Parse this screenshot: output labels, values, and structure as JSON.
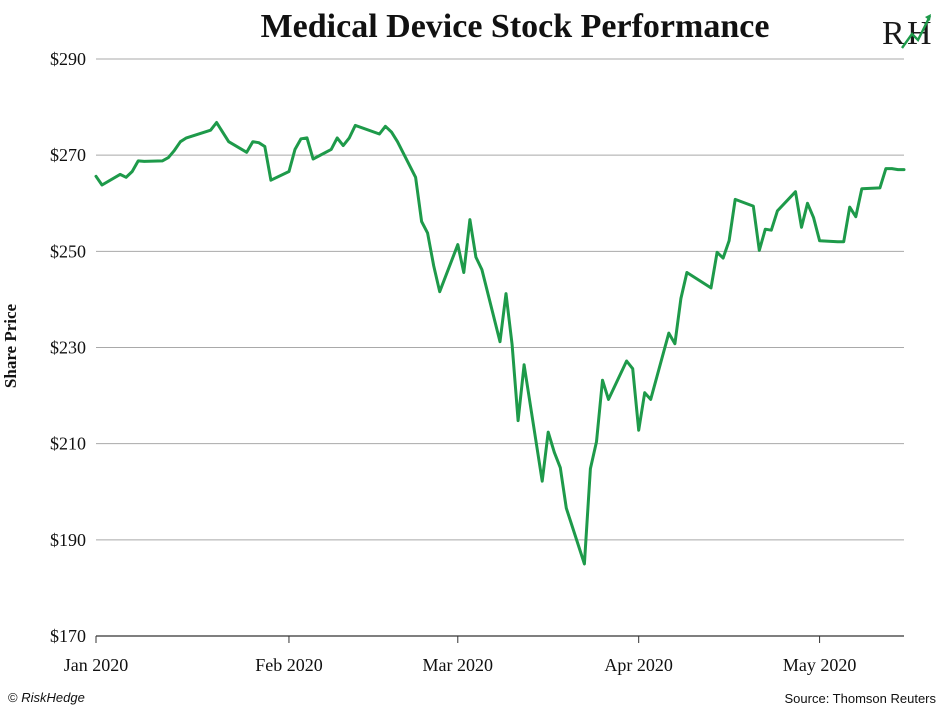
{
  "chart_data": {
    "type": "line",
    "title": "Medical Device Stock Performance",
    "ylabel": "Share Price",
    "xlabel": "",
    "ylim": [
      170,
      290
    ],
    "yticks": [
      170,
      190,
      210,
      230,
      250,
      270,
      290
    ],
    "ytick_labels": [
      "$170",
      "$190",
      "$210",
      "$230",
      "$250",
      "$270",
      "$290"
    ],
    "xlim": [
      "2020-01-02",
      "2020-05-15"
    ],
    "xticks": [
      {
        "date": "2020-01-02",
        "label": "Jan 2020"
      },
      {
        "date": "2020-02-03",
        "label": "Feb 2020"
      },
      {
        "date": "2020-03-02",
        "label": "Mar 2020"
      },
      {
        "date": "2020-04-01",
        "label": "Apr 2020"
      },
      {
        "date": "2020-05-01",
        "label": "May 2020"
      }
    ],
    "grid": "horizontal",
    "line_color": "#1e9a4a",
    "series": [
      {
        "x": [
          "2020-01-02",
          "2020-01-03",
          "2020-01-06",
          "2020-01-07",
          "2020-01-08",
          "2020-01-09",
          "2020-01-10",
          "2020-01-13",
          "2020-01-14",
          "2020-01-15",
          "2020-01-16",
          "2020-01-17",
          "2020-01-21",
          "2020-01-22",
          "2020-01-23",
          "2020-01-24",
          "2020-01-27",
          "2020-01-28",
          "2020-01-29",
          "2020-01-30",
          "2020-01-31",
          "2020-02-03",
          "2020-02-04",
          "2020-02-05",
          "2020-02-06",
          "2020-02-07",
          "2020-02-10",
          "2020-02-11",
          "2020-02-12",
          "2020-02-13",
          "2020-02-14",
          "2020-02-18",
          "2020-02-19",
          "2020-02-20",
          "2020-02-21",
          "2020-02-24",
          "2020-02-25",
          "2020-02-26",
          "2020-02-27",
          "2020-02-28",
          "2020-03-02",
          "2020-03-03",
          "2020-03-04",
          "2020-03-05",
          "2020-03-06",
          "2020-03-09",
          "2020-03-10",
          "2020-03-11",
          "2020-03-12",
          "2020-03-13",
          "2020-03-16",
          "2020-03-17",
          "2020-03-18",
          "2020-03-19",
          "2020-03-20",
          "2020-03-23",
          "2020-03-24",
          "2020-03-25",
          "2020-03-26",
          "2020-03-27",
          "2020-03-30",
          "2020-03-31",
          "2020-04-01",
          "2020-04-02",
          "2020-04-03",
          "2020-04-06",
          "2020-04-07",
          "2020-04-08",
          "2020-04-09",
          "2020-04-13",
          "2020-04-14",
          "2020-04-15",
          "2020-04-16",
          "2020-04-17",
          "2020-04-20",
          "2020-04-21",
          "2020-04-22",
          "2020-04-23",
          "2020-04-24",
          "2020-04-27",
          "2020-04-28",
          "2020-04-29",
          "2020-04-30",
          "2020-05-01",
          "2020-05-04",
          "2020-05-05",
          "2020-05-06",
          "2020-05-07",
          "2020-05-08",
          "2020-05-11",
          "2020-05-12",
          "2020-05-13",
          "2020-05-14",
          "2020-05-15"
        ],
        "y": [
          265.6,
          263.8,
          266.0,
          265.4,
          266.6,
          268.8,
          268.7,
          268.8,
          269.5,
          271.0,
          272.8,
          273.6,
          275.2,
          276.8,
          274.8,
          272.8,
          270.6,
          272.8,
          272.6,
          271.8,
          264.8,
          266.6,
          271.2,
          273.4,
          273.6,
          269.2,
          271.2,
          273.6,
          272.0,
          273.6,
          276.2,
          274.4,
          276.0,
          274.8,
          272.8,
          265.4,
          256.2,
          253.8,
          247.0,
          241.6,
          251.4,
          245.6,
          256.6,
          248.8,
          246.2,
          231.2,
          241.2,
          230.6,
          214.8,
          226.4,
          202.2,
          212.4,
          208.2,
          205.0,
          196.6,
          185.0,
          204.8,
          210.4,
          223.2,
          219.2,
          227.2,
          225.6,
          212.8,
          220.6,
          219.2,
          233.0,
          230.8,
          240.2,
          245.6,
          242.4,
          249.8,
          248.6,
          252.2,
          260.8,
          259.4,
          250.2,
          254.6,
          254.4,
          258.4,
          262.4,
          255.0,
          260.0,
          257.0,
          252.2,
          252.0,
          252.0,
          259.2,
          257.2,
          263.0,
          263.2,
          267.2,
          267.2,
          267.0,
          267.0
        ]
      }
    ]
  },
  "footer": {
    "copyright_symbol": "©",
    "brand": "RiskHedge",
    "source": "Source: Thomson Reuters"
  },
  "logo": {
    "text": "RH",
    "accent_color": "#1e9a4a"
  }
}
